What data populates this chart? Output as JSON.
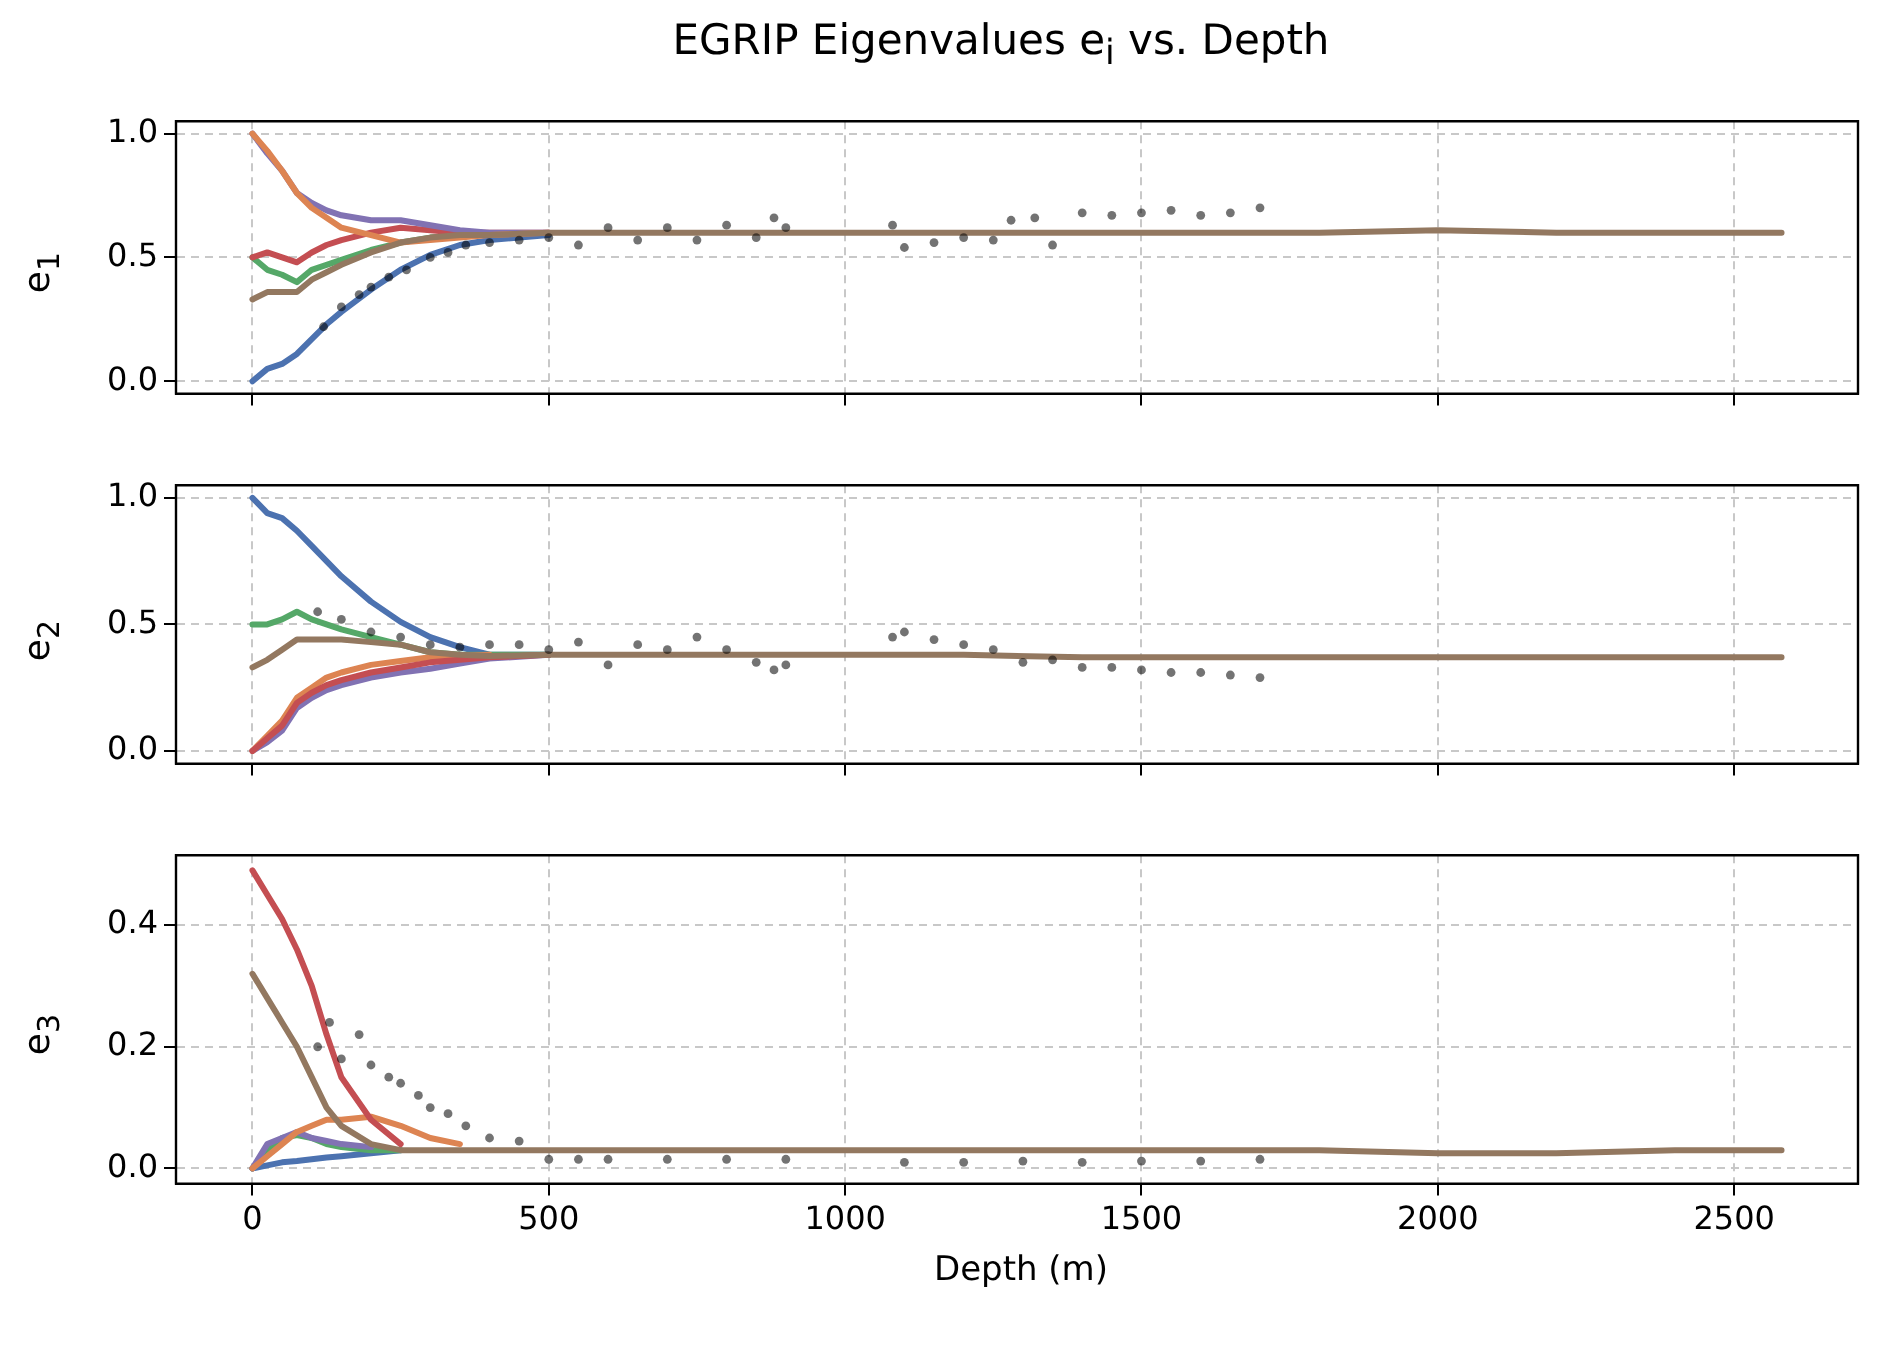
{
  "chart_data": [
    {
      "type": "line",
      "title": "EGRIP Eigenvalues e$_{i}$ vs. Depth",
      "ylabel": "e$_{1}$",
      "x": [
        0,
        25,
        50,
        75,
        100,
        125,
        150,
        200,
        250,
        300,
        350,
        400,
        500,
        600,
        800,
        1000,
        1200,
        1400,
        1600,
        1800,
        2000,
        2200,
        2400,
        2580
      ],
      "xlim": [
        -129,
        2709
      ],
      "xticks": [
        0,
        500,
        1000,
        1500,
        2000,
        2500
      ],
      "ylim": [
        -0.05,
        1.05
      ],
      "yticks": [
        {
          "value": 0,
          "label": "0.0"
        },
        {
          "value": 0.5,
          "label": "0.5"
        },
        {
          "value": 1,
          "label": "1.0"
        }
      ],
      "tick_labels": "y",
      "grid": true,
      "legend": false,
      "marker": "none",
      "line_style": "solid",
      "series": [
        {
          "color": "#4c72b0",
          "values": [
            0,
            0.05,
            0.07,
            0.11,
            0.17,
            0.23,
            0.28,
            0.37,
            0.45,
            0.51,
            0.55,
            0.57,
            0.59,
            null,
            null,
            null,
            null,
            null,
            null,
            null,
            null,
            null,
            null,
            null
          ]
        },
        {
          "color": "#55a868",
          "values": [
            0.5,
            0.45,
            0.43,
            0.4,
            0.45,
            0.47,
            0.49,
            0.53,
            0.56,
            0.58,
            0.59,
            null,
            null,
            null,
            null,
            null,
            null,
            null,
            null,
            null,
            null,
            null,
            null,
            null
          ]
        },
        {
          "color": "#c44e52",
          "values": [
            0.5,
            0.52,
            0.5,
            0.48,
            0.52,
            0.55,
            0.57,
            0.6,
            0.62,
            0.61,
            0.6,
            0.6,
            0.6,
            null,
            null,
            null,
            null,
            null,
            null,
            null,
            null,
            null,
            null,
            null
          ]
        },
        {
          "color": "#8172b3",
          "values": [
            1,
            0.92,
            0.85,
            0.76,
            0.72,
            0.69,
            0.67,
            0.65,
            0.65,
            0.63,
            0.61,
            0.6,
            0.6,
            null,
            null,
            null,
            null,
            null,
            null,
            null,
            null,
            null,
            null,
            null
          ]
        },
        {
          "color": "#dd8452",
          "values": [
            1,
            0.93,
            0.85,
            0.76,
            0.7,
            0.66,
            0.62,
            0.59,
            0.56,
            0.57,
            0.58,
            0.59,
            0.6,
            null,
            null,
            null,
            null,
            null,
            null,
            null,
            null,
            null,
            null,
            null
          ]
        },
        {
          "color": "#937860",
          "values": [
            0.33,
            0.36,
            0.36,
            0.36,
            0.41,
            0.44,
            0.47,
            0.52,
            0.56,
            0.58,
            0.59,
            0.59,
            0.6,
            0.6,
            0.6,
            0.6,
            0.6,
            0.6,
            0.6,
            0.6,
            0.61,
            0.6,
            0.6,
            0.6
          ]
        },
        {
          "type": "scatter",
          "color": "#000000",
          "marker": "circle",
          "x": [
            120,
            150,
            180,
            200,
            230,
            260,
            300,
            330,
            360,
            400,
            450,
            500,
            550,
            600,
            650,
            700,
            750,
            800,
            850,
            880,
            900,
            1080,
            1100,
            1150,
            1200,
            1250,
            1280,
            1320,
            1350,
            1400,
            1450,
            1500,
            1550,
            1600,
            1650,
            1700
          ],
          "values": [
            0.22,
            0.3,
            0.35,
            0.38,
            0.42,
            0.45,
            0.5,
            0.52,
            0.55,
            0.56,
            0.57,
            0.58,
            0.55,
            0.62,
            0.57,
            0.62,
            0.57,
            0.63,
            0.58,
            0.66,
            0.62,
            0.63,
            0.54,
            0.56,
            0.58,
            0.57,
            0.65,
            0.66,
            0.55,
            0.68,
            0.67,
            0.68,
            0.69,
            0.67,
            0.68,
            0.7
          ]
        }
      ]
    },
    {
      "type": "line",
      "ylabel": "e$_{2}$",
      "x": [
        0,
        25,
        50,
        75,
        100,
        125,
        150,
        200,
        250,
        300,
        350,
        400,
        500,
        600,
        800,
        1000,
        1200,
        1400,
        1600,
        1800,
        2000,
        2200,
        2400,
        2580
      ],
      "xlim": [
        -129,
        2709
      ],
      "xticks": [
        0,
        500,
        1000,
        1500,
        2000,
        2500
      ],
      "ylim": [
        -0.05,
        1.05
      ],
      "yticks": [
        {
          "value": 0,
          "label": "0.0"
        },
        {
          "value": 0.5,
          "label": "0.5"
        },
        {
          "value": 1,
          "label": "1.0"
        }
      ],
      "tick_labels": "y",
      "grid": true,
      "legend": false,
      "marker": "none",
      "line_style": "solid",
      "series": [
        {
          "color": "#4c72b0",
          "values": [
            1,
            0.94,
            0.92,
            0.87,
            0.81,
            0.75,
            0.69,
            0.59,
            0.51,
            0.45,
            0.41,
            0.38,
            0.38,
            null,
            null,
            null,
            null,
            null,
            null,
            null,
            null,
            null,
            null,
            null
          ]
        },
        {
          "color": "#55a868",
          "values": [
            0.5,
            0.5,
            0.52,
            0.55,
            0.52,
            0.5,
            0.48,
            0.45,
            0.42,
            0.39,
            0.38,
            0.38,
            0.38,
            null,
            null,
            null,
            null,
            null,
            null,
            null,
            null,
            null,
            null,
            null
          ]
        },
        {
          "color": "#8172b3",
          "values": [
            0,
            0.035,
            0.08,
            0.17,
            0.21,
            0.24,
            0.26,
            0.29,
            0.31,
            0.325,
            0.345,
            0.365,
            0.38,
            null,
            null,
            null,
            null,
            null,
            null,
            null,
            null,
            null,
            null,
            null
          ]
        },
        {
          "color": "#dd8452",
          "values": [
            0,
            0.06,
            0.12,
            0.21,
            0.25,
            0.29,
            0.31,
            0.34,
            0.355,
            0.37,
            0.375,
            0.38,
            null,
            null,
            null,
            null,
            null,
            null,
            null,
            null,
            null,
            null,
            null,
            null
          ]
        },
        {
          "color": "#c44e52",
          "values": [
            0,
            0.05,
            0.1,
            0.19,
            0.23,
            0.26,
            0.28,
            0.31,
            0.33,
            0.35,
            0.36,
            0.37,
            0.38,
            null,
            null,
            null,
            null,
            null,
            null,
            null,
            null,
            null,
            null,
            null
          ]
        },
        {
          "color": "#937860",
          "values": [
            0.33,
            0.36,
            0.4,
            0.44,
            0.44,
            0.44,
            0.44,
            0.43,
            0.42,
            0.39,
            0.38,
            0.375,
            0.38,
            0.38,
            0.38,
            0.38,
            0.38,
            0.37,
            0.37,
            0.37,
            0.37,
            0.37,
            0.37,
            0.37
          ]
        },
        {
          "type": "scatter",
          "color": "#000000",
          "marker": "circle",
          "x": [
            110,
            150,
            200,
            250,
            300,
            350,
            400,
            450,
            500,
            550,
            600,
            650,
            700,
            750,
            800,
            850,
            880,
            900,
            1080,
            1100,
            1150,
            1200,
            1250,
            1300,
            1350,
            1400,
            1450,
            1500,
            1550,
            1600,
            1650,
            1700
          ],
          "values": [
            0.55,
            0.52,
            0.47,
            0.45,
            0.42,
            0.41,
            0.42,
            0.42,
            0.4,
            0.43,
            0.34,
            0.42,
            0.4,
            0.45,
            0.4,
            0.35,
            0.32,
            0.34,
            0.45,
            0.47,
            0.44,
            0.42,
            0.4,
            0.35,
            0.36,
            0.33,
            0.33,
            0.32,
            0.31,
            0.31,
            0.3,
            0.29
          ]
        }
      ]
    },
    {
      "type": "line",
      "ylabel": "e$_{3}$",
      "xlabel": "Depth (m)",
      "x": [
        0,
        25,
        50,
        75,
        100,
        125,
        150,
        200,
        250,
        300,
        350,
        400,
        500,
        600,
        800,
        1000,
        1200,
        1400,
        1600,
        1800,
        2000,
        2200,
        2400,
        2580
      ],
      "xlim": [
        -129,
        2709
      ],
      "xticks": [
        0,
        500,
        1000,
        1500,
        2000,
        2500
      ],
      "ylim": [
        -0.025,
        0.515
      ],
      "yticks": [
        {
          "value": 0,
          "label": "0.0"
        },
        {
          "value": 0.2,
          "label": "0.2"
        },
        {
          "value": 0.4,
          "label": "0.4"
        }
      ],
      "grid": true,
      "legend": false,
      "marker": "none",
      "line_style": "solid",
      "series": [
        {
          "color": "#4c72b0",
          "values": [
            0,
            0.005,
            0.01,
            0.012,
            0.015,
            0.018,
            0.02,
            0.025,
            0.03,
            null,
            null,
            null,
            null,
            null,
            null,
            null,
            null,
            null,
            null,
            null,
            null,
            null,
            null,
            null
          ]
        },
        {
          "color": "#55a868",
          "values": [
            0,
            0.03,
            0.05,
            0.055,
            0.05,
            0.04,
            0.035,
            0.03,
            0.03,
            null,
            null,
            null,
            null,
            null,
            null,
            null,
            null,
            null,
            null,
            null,
            null,
            null,
            null,
            null
          ]
        },
        {
          "color": "#8172b3",
          "values": [
            0,
            0.04,
            0.05,
            0.06,
            0.05,
            0.045,
            0.04,
            0.035,
            null,
            null,
            null,
            null,
            null,
            null,
            null,
            null,
            null,
            null,
            null,
            null,
            null,
            null,
            null,
            null
          ]
        },
        {
          "color": "#dd8452",
          "values": [
            0,
            0.02,
            0.04,
            0.06,
            0.07,
            0.08,
            0.08,
            0.085,
            0.07,
            0.05,
            0.04,
            null,
            null,
            null,
            null,
            null,
            null,
            null,
            null,
            null,
            null,
            null,
            null,
            null
          ]
        },
        {
          "color": "#c44e52",
          "values": [
            0.49,
            0.45,
            0.41,
            0.36,
            0.3,
            0.22,
            0.15,
            0.08,
            0.04,
            null,
            null,
            null,
            null,
            null,
            null,
            null,
            null,
            null,
            null,
            null,
            null,
            null,
            null,
            null
          ]
        },
        {
          "color": "#937860",
          "values": [
            0.32,
            0.28,
            0.24,
            0.2,
            0.15,
            0.1,
            0.07,
            0.04,
            0.03,
            0.03,
            0.03,
            0.03,
            0.03,
            0.03,
            0.03,
            0.03,
            0.03,
            0.03,
            0.03,
            0.03,
            0.025,
            0.025,
            0.03,
            0.03
          ]
        },
        {
          "type": "scatter",
          "color": "#000000",
          "marker": "circle",
          "x": [
            110,
            130,
            150,
            180,
            200,
            230,
            250,
            280,
            300,
            330,
            360,
            400,
            450,
            500,
            550,
            600,
            700,
            800,
            900,
            1100,
            1200,
            1300,
            1400,
            1500,
            1600,
            1700
          ],
          "values": [
            0.2,
            0.24,
            0.18,
            0.22,
            0.17,
            0.15,
            0.14,
            0.12,
            0.1,
            0.09,
            0.07,
            0.05,
            0.045,
            0.015,
            0.015,
            0.015,
            0.015,
            0.015,
            0.015,
            0.01,
            0.01,
            0.012,
            0.01,
            0.012,
            0.012,
            0.015
          ]
        }
      ]
    }
  ]
}
